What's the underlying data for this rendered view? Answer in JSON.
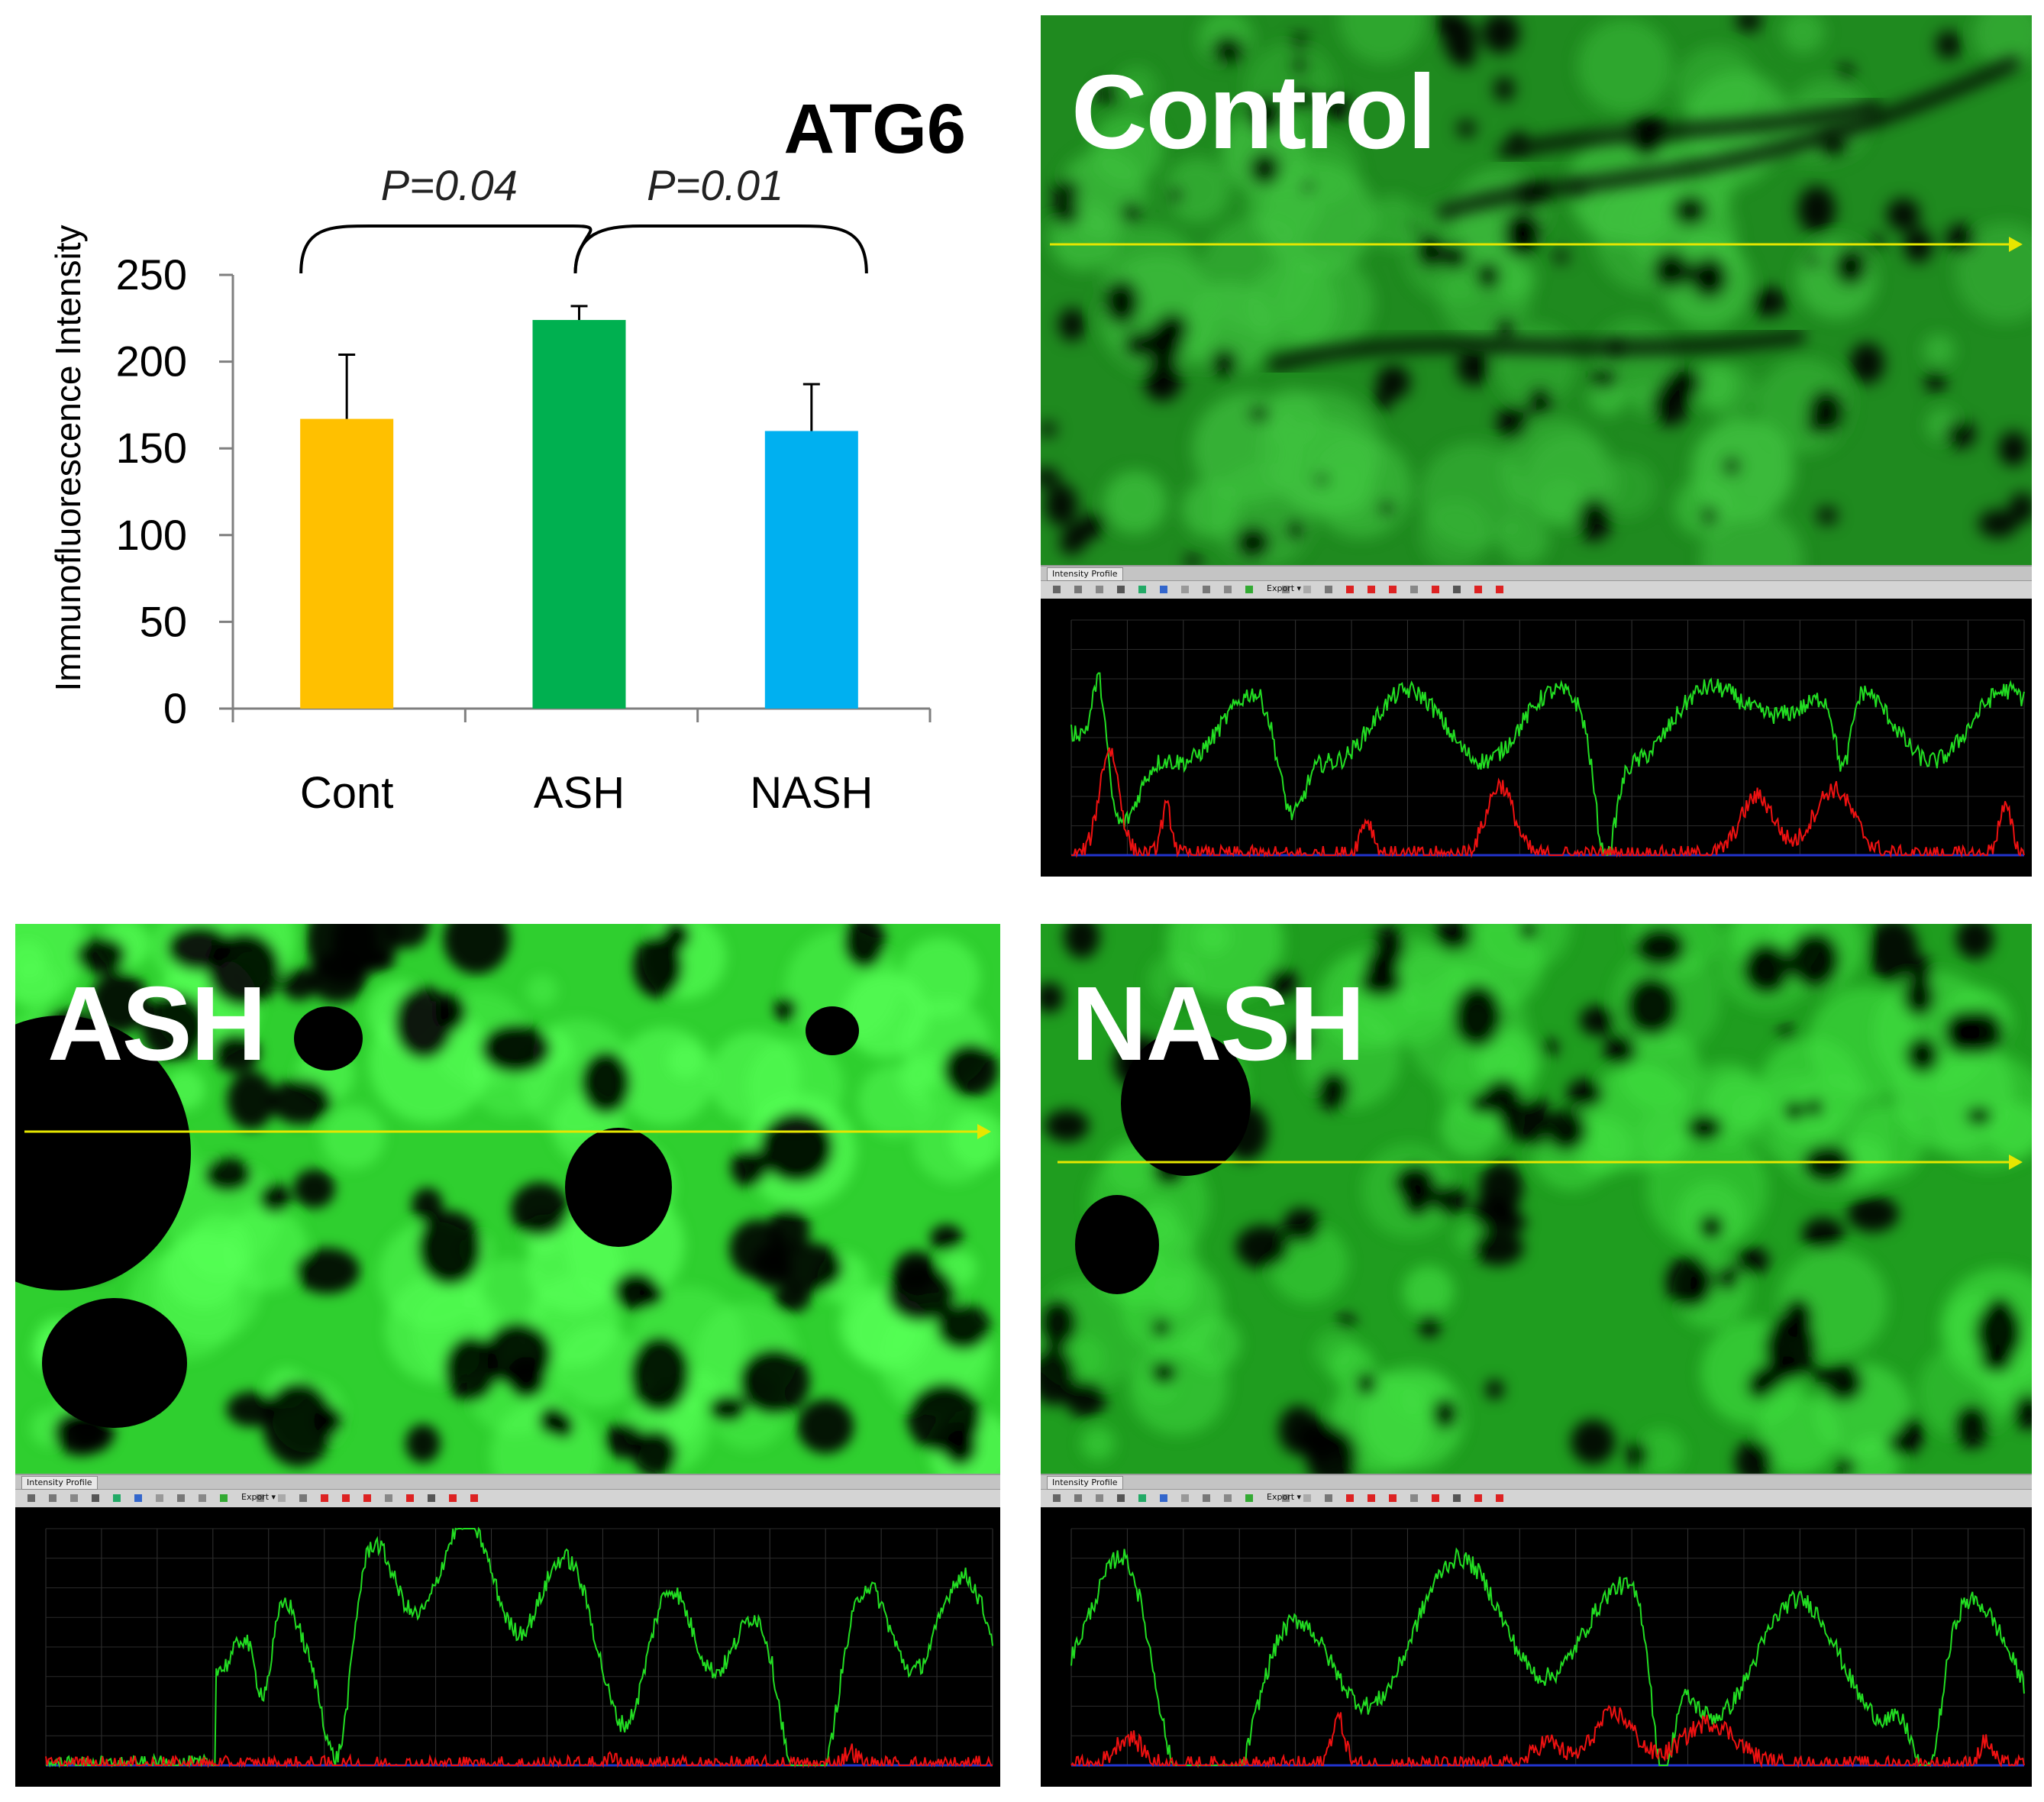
{
  "chart_data": {
    "type": "bar",
    "title": "ATG6",
    "ylabel": "Immunofluorescence Intensity",
    "xlabel": "",
    "categories": [
      "Cont",
      "ASH",
      "NASH"
    ],
    "values": [
      167,
      224,
      160
    ],
    "errors": [
      37,
      8,
      27
    ],
    "colors": [
      "#FFC000",
      "#00B050",
      "#00B0F0"
    ],
    "ylim": [
      0,
      250
    ],
    "yticks": [
      0,
      50,
      100,
      150,
      200,
      250
    ],
    "annotations": [
      {
        "text": "P=0.04",
        "from": "Cont",
        "to": "ASH"
      },
      {
        "text": "P=0.01",
        "from": "ASH",
        "to": "NASH"
      }
    ],
    "grid": false
  },
  "panels": {
    "control": {
      "label": "Control"
    },
    "ash": {
      "label": "ASH"
    },
    "nash": {
      "label": "NASH"
    }
  },
  "profile_tool": {
    "tab_label": "Intensity Profile",
    "export_label": "Export"
  },
  "colors": {
    "fluorescence": "#2fd02f",
    "profile_green": "#22dd22",
    "profile_red": "#ee1111",
    "arrow": "#e6e600"
  }
}
